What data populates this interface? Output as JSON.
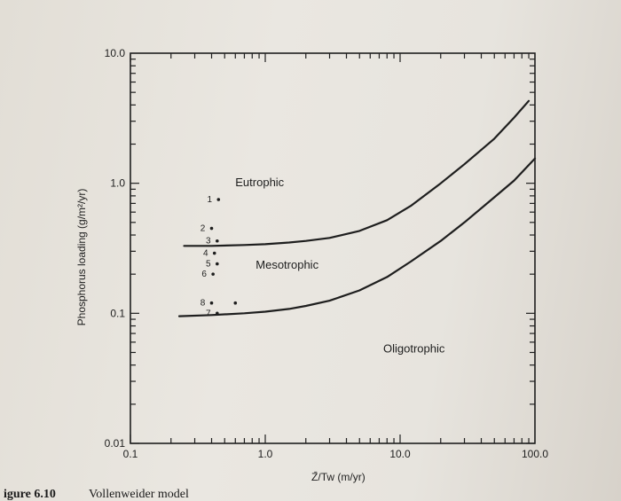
{
  "chart_data": {
    "type": "line",
    "x_scale": "log",
    "y_scale": "log",
    "xlim": [
      0.1,
      100.0
    ],
    "ylim": [
      0.01,
      10.0
    ],
    "xlabel": "Z̄/Tw (m/yr)",
    "ylabel": "Phosphorus loading (g/m²/yr)",
    "x_tick_labels": [
      "0.1",
      "1.0",
      "10.0",
      "100.0"
    ],
    "y_tick_labels": [
      "0.01",
      "0.1",
      "1.0",
      "10.0"
    ],
    "x_ticks": [
      0.1,
      1.0,
      10.0,
      100.0
    ],
    "y_ticks": [
      0.01,
      0.1,
      1.0,
      10.0
    ],
    "grid": false,
    "series": [
      {
        "x": [
          0.25,
          0.4,
          0.7,
          1.0,
          1.5,
          2.0,
          3.0,
          5.0,
          8.0,
          12.0,
          20.0,
          30.0,
          50.0,
          70.0,
          90.0
        ],
        "y": [
          0.33,
          0.33,
          0.335,
          0.34,
          0.35,
          0.36,
          0.38,
          0.43,
          0.52,
          0.67,
          1.0,
          1.4,
          2.2,
          3.2,
          4.3
        ]
      },
      {
        "x": [
          0.23,
          0.4,
          0.7,
          1.0,
          1.5,
          2.0,
          3.0,
          5.0,
          8.0,
          12.0,
          20.0,
          30.0,
          50.0,
          70.0,
          100.0
        ],
        "y": [
          0.095,
          0.097,
          0.1,
          0.103,
          0.108,
          0.114,
          0.125,
          0.15,
          0.19,
          0.25,
          0.36,
          0.5,
          0.78,
          1.05,
          1.55
        ]
      }
    ],
    "points": [
      {
        "label": "1",
        "x": 0.45,
        "y": 0.75
      },
      {
        "label": "2",
        "x": 0.4,
        "y": 0.45
      },
      {
        "label": "3",
        "x": 0.44,
        "y": 0.36
      },
      {
        "label": "4",
        "x": 0.42,
        "y": 0.29
      },
      {
        "label": "5",
        "x": 0.44,
        "y": 0.24
      },
      {
        "label": "6",
        "x": 0.41,
        "y": 0.2
      },
      {
        "label": "8",
        "x": 0.4,
        "y": 0.12
      },
      {
        "label": "7",
        "x": 0.44,
        "y": 0.1
      },
      {
        "label": "",
        "x": 0.6,
        "y": 0.12
      }
    ],
    "annotations": [
      {
        "text": "Eutrophic",
        "x": 0.6,
        "y": 0.95
      },
      {
        "text": "Mesotrophic",
        "x": 0.85,
        "y": 0.22
      },
      {
        "text": "Oligotrophic",
        "x": 7.5,
        "y": 0.05
      }
    ]
  },
  "caption": {
    "number": "igure 6.10",
    "text": "Vollenweider model"
  },
  "colors": {
    "ink": "#1e1e1e",
    "paper": "#e7e4de"
  }
}
